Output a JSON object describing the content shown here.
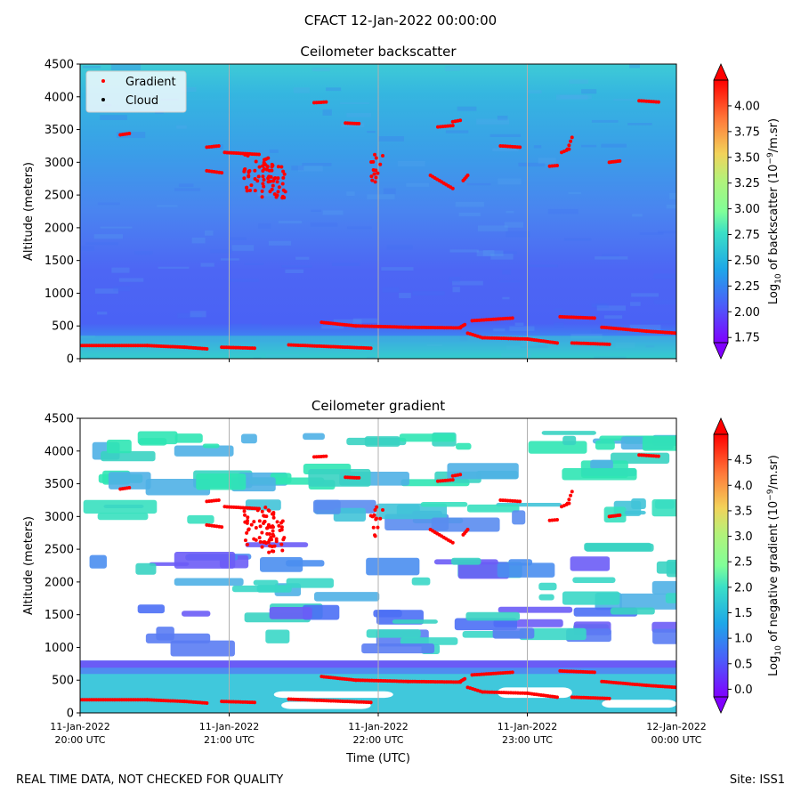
{
  "figure": {
    "title": "CFACT 12-Jan-2022 00:00:00",
    "footer_left": "REAL TIME DATA, NOT CHECKED FOR QUALITY",
    "footer_right": "Site: ISS1"
  },
  "chart_data": [
    {
      "type": "heatmap",
      "title": "Ceilometer backscatter",
      "xlabel": "",
      "ylabel": "Altitude (meters)",
      "ylim": [
        0,
        4500
      ],
      "yticks": [
        0,
        500,
        1000,
        1500,
        2000,
        2500,
        3000,
        3500,
        4000,
        4500
      ],
      "xlim_hours": [
        20,
        24
      ],
      "colorbar": {
        "label": "Log10 of backscatter (10^-9/m.sr)",
        "label_main": "Log",
        "label_sub": "10",
        "label_rest": " of backscatter (10",
        "label_exp": "−9",
        "label_end": "/m.sr)",
        "range": [
          1.7,
          4.25
        ],
        "ticks": [
          "1.75",
          "2.00",
          "2.25",
          "2.50",
          "2.75",
          "3.00",
          "3.25",
          "3.50",
          "3.75",
          "4.00"
        ],
        "tick_values": [
          1.75,
          2.0,
          2.25,
          2.5,
          2.75,
          3.0,
          3.25,
          3.5,
          3.75,
          4.0
        ]
      },
      "legend": {
        "placement": "top-left",
        "entries": [
          "Gradient",
          "Cloud"
        ]
      }
    },
    {
      "type": "heatmap",
      "title": "Ceilometer gradient",
      "xlabel": "Time (UTC)",
      "ylabel": "Altitude (meters)",
      "ylim": [
        0,
        4500
      ],
      "yticks": [
        0,
        500,
        1000,
        1500,
        2000,
        2500,
        3000,
        3500,
        4000,
        4500
      ],
      "xlim_hours": [
        20,
        24
      ],
      "xticks": [
        {
          "date": "11-Jan-2022",
          "time": "20:00 UTC",
          "hour": 20
        },
        {
          "date": "11-Jan-2022",
          "time": "21:00 UTC",
          "hour": 21
        },
        {
          "date": "11-Jan-2022",
          "time": "22:00 UTC",
          "hour": 22
        },
        {
          "date": "11-Jan-2022",
          "time": "23:00 UTC",
          "hour": 23
        },
        {
          "date": "12-Jan-2022",
          "time": "00:00 UTC",
          "hour": 24
        }
      ],
      "colorbar": {
        "label": "Log10 of negative gradient (10^-9/m.sr)",
        "label_main": "Log",
        "label_sub": "10",
        "label_rest": " of negative gradient (10",
        "label_exp": "−9",
        "label_end": "/m.sr)",
        "range": [
          -0.15,
          5.0
        ],
        "ticks": [
          "0.0",
          "0.5",
          "1.0",
          "1.5",
          "2.0",
          "2.5",
          "3.0",
          "3.5",
          "4.0",
          "4.5"
        ],
        "tick_values": [
          0.0,
          0.5,
          1.0,
          1.5,
          2.0,
          2.5,
          3.0,
          3.5,
          4.0,
          4.5
        ]
      }
    }
  ],
  "gradient_layers": [
    {
      "name": "low-layer-1",
      "t": [
        20.0,
        20.45,
        20.7,
        20.85
      ],
      "alt": [
        200,
        200,
        175,
        150
      ]
    },
    {
      "name": "low-layer-2",
      "t": [
        20.95,
        21.17
      ],
      "alt": [
        175,
        160
      ]
    },
    {
      "name": "low-layer-3",
      "t": [
        21.4,
        21.95
      ],
      "alt": [
        210,
        160
      ]
    },
    {
      "name": "boundary-layer-1",
      "t": [
        21.62,
        21.85,
        22.2,
        22.55
      ],
      "alt": [
        555,
        500,
        480,
        470
      ]
    },
    {
      "name": "boundary-layer-2",
      "t": [
        22.55,
        22.58
      ],
      "alt": [
        480,
        520
      ]
    },
    {
      "name": "residual-layer",
      "t": [
        22.6,
        22.7,
        23.0,
        23.2
      ],
      "alt": [
        390,
        320,
        300,
        240
      ]
    },
    {
      "name": "mid-layer-1",
      "t": [
        22.63,
        22.9
      ],
      "alt": [
        580,
        620
      ]
    },
    {
      "name": "mid-layer-2",
      "t": [
        23.22,
        23.45
      ],
      "alt": [
        640,
        620
      ]
    },
    {
      "name": "low-layer-4",
      "t": [
        23.3,
        23.55
      ],
      "alt": [
        240,
        220
      ]
    },
    {
      "name": "evening-layer",
      "t": [
        23.5,
        23.8,
        24.0
      ],
      "alt": [
        480,
        420,
        390
      ]
    },
    {
      "name": "upper-1",
      "t": [
        20.27,
        20.33
      ],
      "alt": [
        3420,
        3440
      ]
    },
    {
      "name": "upper-2",
      "t": [
        20.85,
        20.95
      ],
      "alt": [
        2870,
        2840
      ]
    },
    {
      "name": "upper-3",
      "t": [
        20.97,
        21.2
      ],
      "alt": [
        3150,
        3120
      ]
    },
    {
      "name": "upper-4",
      "t": [
        21.57,
        21.65
      ],
      "alt": [
        3910,
        3920
      ]
    },
    {
      "name": "upper-5",
      "t": [
        21.78,
        21.87
      ],
      "alt": [
        3600,
        3590
      ]
    },
    {
      "name": "upper-6",
      "t": [
        22.4,
        22.5
      ],
      "alt": [
        3540,
        3560
      ]
    },
    {
      "name": "upper-7",
      "t": [
        22.5,
        22.55
      ],
      "alt": [
        3620,
        3640
      ]
    },
    {
      "name": "upper-8",
      "t": [
        22.82,
        22.95
      ],
      "alt": [
        3250,
        3230
      ]
    },
    {
      "name": "upper-9",
      "t": [
        23.15,
        23.2
      ],
      "alt": [
        2940,
        2950
      ]
    },
    {
      "name": "upper-10",
      "t": [
        23.75,
        23.88
      ],
      "alt": [
        3940,
        3920
      ]
    },
    {
      "name": "upper-11",
      "t": [
        23.55,
        23.62
      ],
      "alt": [
        3000,
        3020
      ]
    },
    {
      "name": "upper-12",
      "t": [
        20.85,
        20.93
      ],
      "alt": [
        3230,
        3250
      ]
    },
    {
      "name": "upper-13",
      "t": [
        22.35,
        22.5
      ],
      "alt": [
        2800,
        2600
      ]
    },
    {
      "name": "upper-14",
      "t": [
        22.57,
        22.6
      ],
      "alt": [
        2720,
        2800
      ]
    },
    {
      "name": "upper-15",
      "t": [
        23.27,
        23.3
      ],
      "alt": [
        3200,
        3380
      ]
    },
    {
      "name": "upper-16",
      "t": [
        23.23,
        23.28
      ],
      "alt": [
        3150,
        3200
      ]
    },
    {
      "name": "upper-17",
      "t": [
        21.98,
        22.03
      ],
      "alt": [
        2700,
        3100
      ]
    }
  ]
}
